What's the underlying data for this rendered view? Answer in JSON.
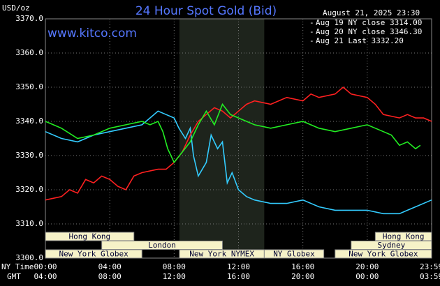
{
  "chart_data": {
    "type": "line",
    "title": "24 Hour Spot Gold (Bid)",
    "subtitle": "August 21, 2025 23:30",
    "ylabel": "USD/oz",
    "watermark": "www.kitco.com",
    "xlabel": "NY Time",
    "x2label": "GMT",
    "xlim": [
      0,
      24
    ],
    "xticks": [
      {
        "value": 0,
        "label": "00:00"
      },
      {
        "value": 4,
        "label": "04:00"
      },
      {
        "value": 8,
        "label": "08:00"
      },
      {
        "value": 12,
        "label": "12:00"
      },
      {
        "value": 16,
        "label": "16:00"
      },
      {
        "value": 20,
        "label": "20:00"
      },
      {
        "value": 23.98,
        "label": "23:59"
      }
    ],
    "x2ticks": [
      {
        "value": 0,
        "label": "04:00"
      },
      {
        "value": 4,
        "label": "08:00"
      },
      {
        "value": 8,
        "label": "12:00"
      },
      {
        "value": 12,
        "label": "16:00"
      },
      {
        "value": 16,
        "label": "20:00"
      },
      {
        "value": 20,
        "label": "00:00"
      },
      {
        "value": 23.98,
        "label": "03:59"
      }
    ],
    "ylim": [
      3300,
      3370
    ],
    "yticks": [
      {
        "value": 3300,
        "label": "3300.0"
      },
      {
        "value": 3310,
        "label": "3310.0"
      },
      {
        "value": 3320,
        "label": "3320.0"
      },
      {
        "value": 3330,
        "label": "3330.0"
      },
      {
        "value": 3340,
        "label": "3340.0"
      },
      {
        "value": 3350,
        "label": "3350.0"
      },
      {
        "value": 3360,
        "label": "3360.0"
      },
      {
        "value": 3370,
        "label": "3370.0"
      }
    ],
    "grid": true,
    "legend": "top-right",
    "series": [
      {
        "name": "Aug 19 NY close 3314.00",
        "color": "#33ccff",
        "x": [
          0,
          1,
          2,
          3,
          4,
          5,
          6,
          6.5,
          7,
          7.5,
          8,
          8.3,
          8.7,
          9,
          9.2,
          9.5,
          10,
          10.3,
          10.7,
          11,
          11.3,
          11.6,
          12,
          12.5,
          13,
          14,
          15,
          16,
          17,
          18,
          19,
          20,
          21,
          22,
          22.5,
          23,
          24
        ],
        "values": [
          3337,
          3335,
          3334,
          3336,
          3337,
          3338,
          3339,
          3341,
          3343,
          3342,
          3341,
          3338,
          3335,
          3338,
          3330,
          3324,
          3328,
          3336,
          3332,
          3334,
          3322,
          3325,
          3320,
          3318,
          3317,
          3316,
          3316,
          3317,
          3315,
          3314,
          3314,
          3314,
          3313,
          3313,
          3314,
          3315,
          3317
        ]
      },
      {
        "name": "Aug 20 NY close 3346.30",
        "color": "#ff2020",
        "x": [
          0,
          1,
          1.5,
          2,
          2.5,
          3,
          3.5,
          4,
          4.5,
          5,
          5.5,
          6,
          7,
          7.5,
          8,
          8.5,
          9,
          9.5,
          10,
          10.5,
          11,
          11.5,
          12,
          12.5,
          13,
          14,
          15,
          16,
          16.5,
          17,
          18,
          18.5,
          19,
          20,
          20.5,
          21,
          22,
          22.5,
          23,
          23.5,
          24
        ],
        "values": [
          3317,
          3318,
          3320,
          3319,
          3323,
          3322,
          3324,
          3323,
          3321,
          3320,
          3324,
          3325,
          3326,
          3326,
          3328,
          3331,
          3336,
          3340,
          3342,
          3344,
          3343,
          3341,
          3343,
          3345,
          3346,
          3345,
          3347,
          3346,
          3348,
          3347,
          3348,
          3350,
          3348,
          3347,
          3345,
          3342,
          3341,
          3342,
          3341,
          3341,
          3340
        ]
      },
      {
        "name": "Aug 21 Last 3332.20",
        "color": "#22ee22",
        "x": [
          0,
          0.5,
          1,
          2,
          3,
          4,
          5,
          6,
          6.5,
          7,
          7.3,
          7.6,
          8,
          8.5,
          9,
          9.5,
          10,
          10.5,
          11,
          11.5,
          12,
          12.5,
          13,
          14,
          15,
          16,
          17,
          18,
          19,
          20,
          21,
          21.5,
          22,
          22.5,
          23,
          23.3
        ],
        "values": [
          3340,
          3339,
          3338,
          3335,
          3336,
          3338,
          3339,
          3340,
          3339,
          3340,
          3337,
          3332,
          3328,
          3331,
          3334,
          3339,
          3343,
          3339,
          3345,
          3342,
          3341,
          3340,
          3339,
          3338,
          3339,
          3340,
          3338,
          3337,
          3338,
          3339,
          3337,
          3336,
          3333,
          3334,
          3332,
          3333
        ]
      }
    ],
    "sessions": [
      [
        {
          "label": "Hong Kong",
          "start": 0,
          "end": 5.5
        },
        {
          "label": "Hong Kong",
          "start": 20.5,
          "end": 24
        }
      ],
      [
        {
          "label": "London",
          "start": 3.5,
          "end": 11
        },
        {
          "label": "Sydney",
          "start": 19,
          "end": 24
        }
      ],
      [
        {
          "label": "New York Globex",
          "start": 0,
          "end": 6
        },
        {
          "label": "New York NYMEX",
          "start": 8.33,
          "end": 13.6,
          "highlight": true
        },
        {
          "label": "NY Globex",
          "start": 13.6,
          "end": 17.3
        },
        {
          "label": "New York Globex",
          "start": 18,
          "end": 24
        }
      ]
    ]
  }
}
